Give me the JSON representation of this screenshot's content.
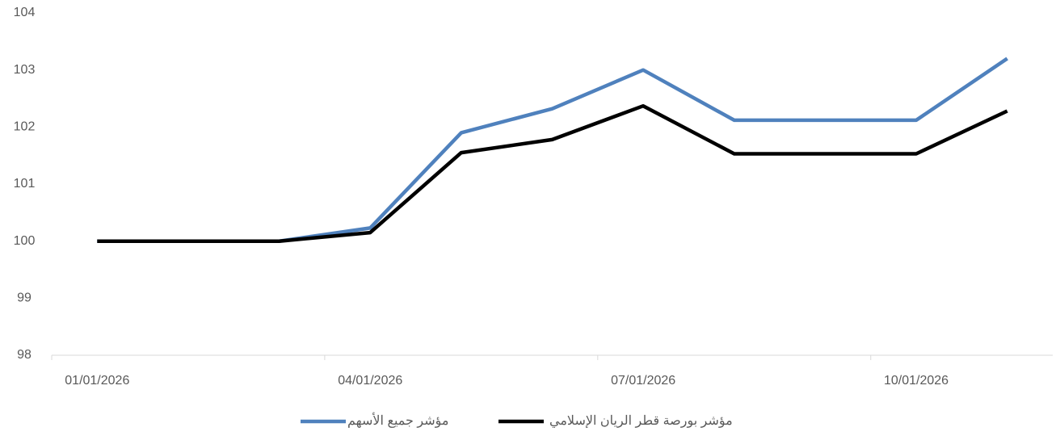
{
  "chart_data": {
    "type": "line",
    "categories": [
      "01/01/2026",
      null,
      null,
      "04/01/2026",
      null,
      null,
      "07/01/2026",
      null,
      null,
      "10/01/2026",
      null
    ],
    "series": [
      {
        "name": "مؤشر جميع الأسهم",
        "color": "#4f81bd",
        "values": [
          100,
          100,
          100,
          100.23,
          101.9,
          102.32,
          103,
          102.12,
          102.12,
          102.12,
          103.2
        ]
      },
      {
        "name": "مؤشر بورصة قطر الريان الإسلامي",
        "color": "#000000",
        "values": [
          100,
          100,
          100,
          100.15,
          101.55,
          101.78,
          102.37,
          101.53,
          101.53,
          101.53,
          102.28
        ]
      }
    ],
    "ylim": [
      98,
      104
    ],
    "yticks": [
      98,
      99,
      100,
      101,
      102,
      103,
      104
    ],
    "grid": false,
    "legend": "bottom"
  }
}
